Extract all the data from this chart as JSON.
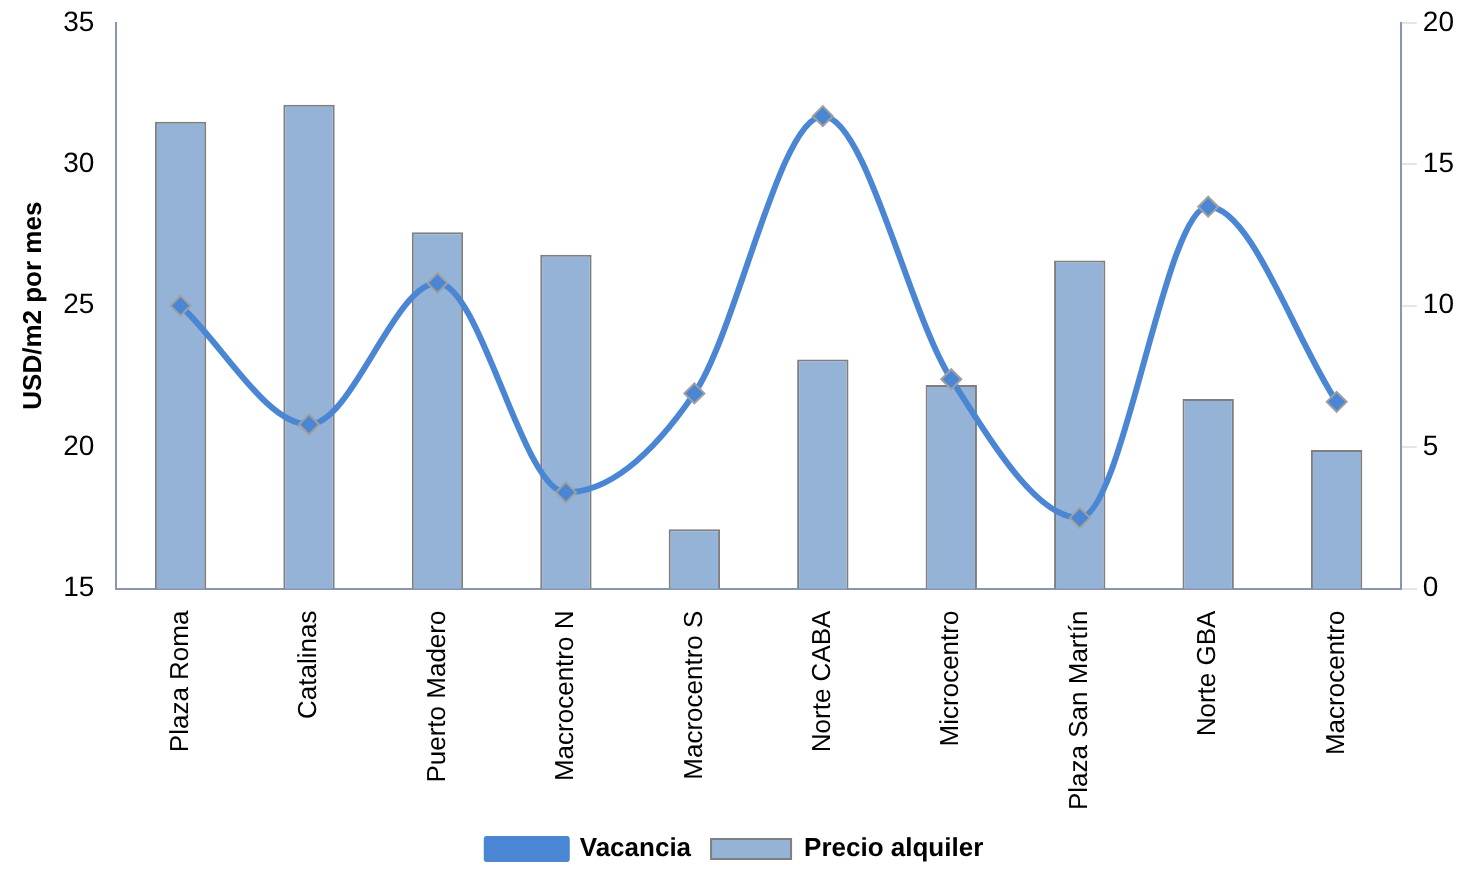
{
  "chart_data": {
    "type": "bar",
    "ylabel": "USD/m2 por mes",
    "categories": [
      "Plaza Roma",
      "Catalinas",
      "Puerto Madero",
      "Macrocentro N",
      "Macrocentro S",
      "Norte CABA",
      "Microcentro",
      "Plaza San Martín",
      "Norte GBA",
      "Macrocentro"
    ],
    "series": [
      {
        "name": "Precio alquiler",
        "color": "#95b3d7",
        "values": [
          31.5,
          32.1,
          27.6,
          26.8,
          17.1,
          23.1,
          22.2,
          26.6,
          21.7,
          19.9
        ]
      },
      {
        "name": "Vacancia",
        "type": "line",
        "axis": "y2",
        "color": "#4a86d4",
        "marker": "diamond",
        "values": [
          10.0,
          5.8,
          10.8,
          3.4,
          6.9,
          16.7,
          7.4,
          2.5,
          13.5,
          6.6
        ]
      }
    ],
    "ylim": [
      15,
      35
    ],
    "yticks": [
      15,
      20,
      25,
      30,
      35
    ],
    "y2lim": [
      0,
      20
    ],
    "y2ticks": [
      0,
      5,
      10,
      15,
      20
    ],
    "grid": false,
    "legend": "bottom"
  }
}
